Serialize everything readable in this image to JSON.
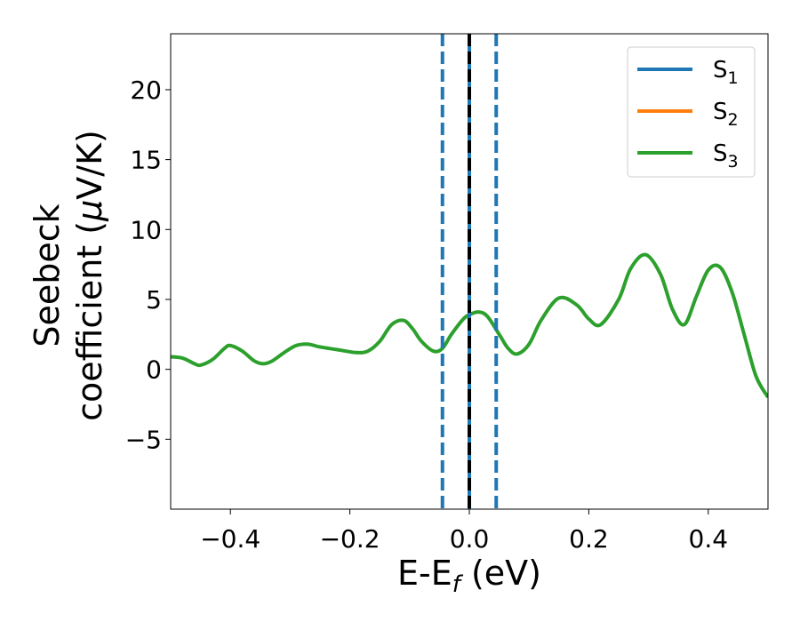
{
  "chart_data": {
    "type": "line",
    "xlabel": "E-E_f (eV)",
    "ylabel_line1": "Seebeck",
    "ylabel_line2": "coefficient  (μV/K)",
    "xlim": [
      -0.5,
      0.5
    ],
    "ylim": [
      -10,
      24
    ],
    "xticks": [
      -0.4,
      -0.2,
      0.0,
      0.2,
      0.4
    ],
    "xtick_labels": [
      "−0.4",
      "−0.2",
      "0.0",
      "0.2",
      "0.4"
    ],
    "yticks": [
      -5,
      0,
      5,
      10,
      15,
      20
    ],
    "ytick_labels": [
      "−5",
      "0",
      "5",
      "10",
      "15",
      "20"
    ],
    "legend_position": "top-right",
    "legend": [
      {
        "base": "S",
        "sub": "1"
      },
      {
        "base": "S",
        "sub": "2"
      },
      {
        "base": "S",
        "sub": "3"
      }
    ],
    "colors": {
      "s1": "#1f77b4",
      "s2": "#ff7f0e",
      "s3": "#2ca02c",
      "fermi": "#000000",
      "dashed": "#1f77b4"
    },
    "vlines": [
      {
        "x": -0.045,
        "style": "dashed",
        "color": "#1f77b4"
      },
      {
        "x": 0.0,
        "style": "solid",
        "color": "#1f77b4"
      },
      {
        "x": 0.0,
        "style": "dashed",
        "color": "#000000"
      },
      {
        "x": 0.045,
        "style": "dashed",
        "color": "#1f77b4"
      }
    ],
    "series": [
      {
        "name": "S_1",
        "color": "#1f77b4"
      },
      {
        "name": "S_2",
        "color": "#ff7f0e"
      },
      {
        "name": "S_3",
        "color": "#2ca02c",
        "x": [
          -0.5,
          -0.48,
          -0.46,
          -0.45,
          -0.43,
          -0.41,
          -0.4,
          -0.38,
          -0.36,
          -0.345,
          -0.33,
          -0.31,
          -0.29,
          -0.27,
          -0.25,
          -0.22,
          -0.19,
          -0.17,
          -0.15,
          -0.13,
          -0.11,
          -0.095,
          -0.08,
          -0.06,
          -0.045,
          -0.03,
          -0.01,
          0.0,
          0.015,
          0.03,
          0.05,
          0.065,
          0.08,
          0.1,
          0.12,
          0.15,
          0.18,
          0.2,
          0.22,
          0.25,
          0.27,
          0.295,
          0.32,
          0.34,
          0.36,
          0.38,
          0.4,
          0.42,
          0.44,
          0.46,
          0.48,
          0.5
        ],
        "y": [
          0.9,
          0.8,
          0.4,
          0.3,
          0.7,
          1.5,
          1.7,
          1.3,
          0.6,
          0.4,
          0.6,
          1.2,
          1.7,
          1.8,
          1.6,
          1.4,
          1.2,
          1.3,
          2.0,
          3.2,
          3.5,
          2.9,
          2.0,
          1.3,
          1.5,
          2.5,
          3.6,
          3.9,
          4.1,
          3.8,
          2.5,
          1.5,
          1.1,
          1.8,
          3.5,
          5.1,
          4.6,
          3.6,
          3.2,
          5.0,
          7.2,
          8.2,
          6.8,
          4.3,
          3.2,
          5.2,
          7.1,
          7.3,
          5.5,
          2.5,
          -0.5,
          -2.0
        ]
      }
    ]
  }
}
